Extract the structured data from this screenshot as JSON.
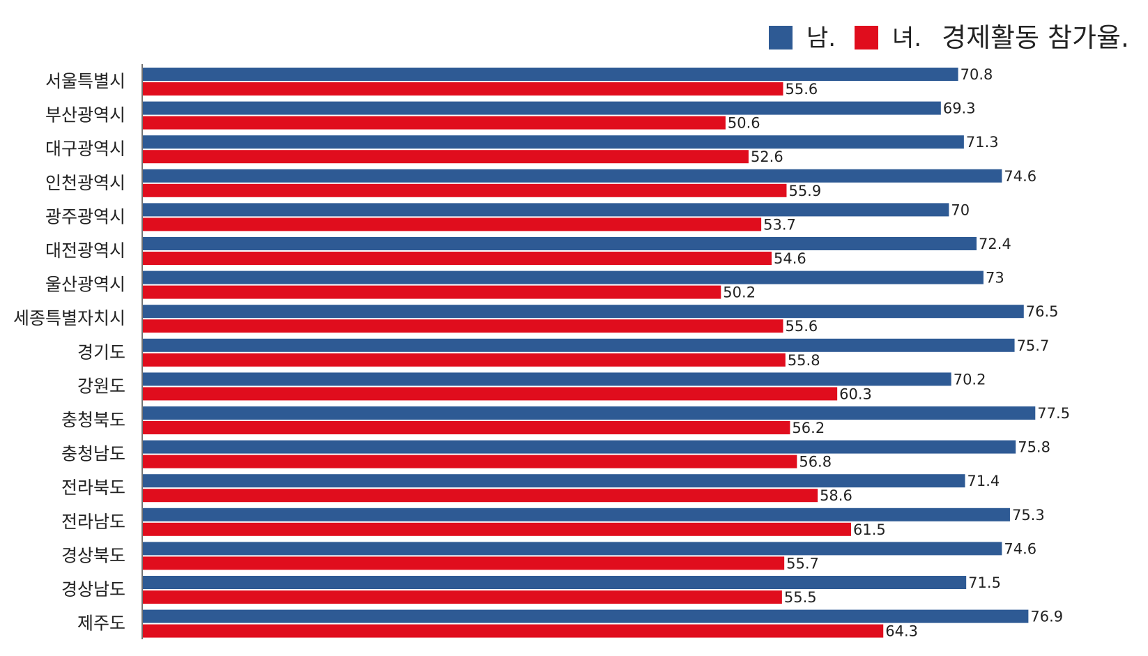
{
  "chart_data": {
    "type": "bar",
    "orientation": "horizontal",
    "title": "경제활동 참가율.",
    "categories": [
      "서울특별시",
      "부산광역시",
      "대구광역시",
      "인천광역시",
      "광주광역시",
      "대전광역시",
      "울산광역시",
      "세종특별자치시",
      "경기도",
      "강원도",
      "충청북도",
      "충청남도",
      "전라북도",
      "전라남도",
      "경상북도",
      "경상남도",
      "제주도"
    ],
    "series": [
      {
        "name": "남.",
        "color": "#2e5a94",
        "values": [
          70.8,
          69.3,
          71.3,
          74.6,
          70,
          72.4,
          73,
          76.5,
          75.7,
          70.2,
          77.5,
          75.8,
          71.4,
          75.3,
          74.6,
          71.5,
          76.9
        ],
        "labels": [
          "70.8",
          "69.3",
          "71.3",
          "74.6",
          "70",
          "72.4",
          "73",
          "76.5",
          "75.7",
          "70.2",
          "77.5",
          "75.8",
          "71.4",
          "75.3",
          "74.6",
          "71.5",
          "76.9"
        ]
      },
      {
        "name": "녀.",
        "color": "#e00d1d",
        "values": [
          55.6,
          50.6,
          52.6,
          55.9,
          53.7,
          54.6,
          50.2,
          55.6,
          55.8,
          60.3,
          56.2,
          56.8,
          58.6,
          61.5,
          55.7,
          55.5,
          64.3
        ],
        "labels": [
          "55.6",
          "50.6",
          "52.6",
          "55.9",
          "53.7",
          "54.6",
          "50.2",
          "55.6",
          "55.8",
          "60.3",
          "56.2",
          "56.8",
          "58.6",
          "61.5",
          "55.7",
          "55.5",
          "64.3"
        ]
      }
    ],
    "xlim": [
      0,
      80
    ],
    "grid": false,
    "legend_position": "top-right"
  }
}
